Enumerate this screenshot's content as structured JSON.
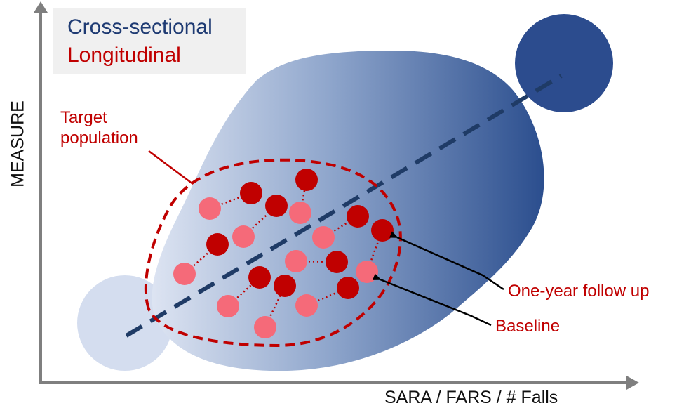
{
  "legend": {
    "cross_sectional": {
      "label": "Cross-sectional",
      "color": "#1f3b73"
    },
    "longitudinal": {
      "label": "Longitudinal",
      "color": "#c00000"
    }
  },
  "axes": {
    "y_label": "MEASURE",
    "x_label": "SARA / FARS / # Falls"
  },
  "annotations": {
    "target_population": [
      "Target",
      "population"
    ],
    "follow_up": "One-year follow up",
    "baseline": "Baseline"
  },
  "colors": {
    "blob_light": "#dbe3f1",
    "blob_dark": "#2c4f8f",
    "big_circle": "#2c4c8e",
    "small_circle": "#d4ddef",
    "trend_line": "#1f3b66",
    "baseline_dot": "#f56a79",
    "follow_up_dot": "#c00000",
    "annotation_red": "#c00000",
    "axis": "#7f7f7f"
  }
}
